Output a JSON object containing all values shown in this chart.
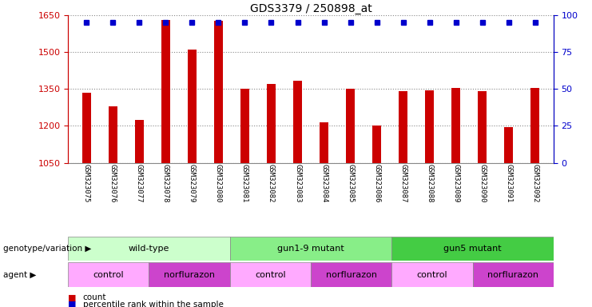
{
  "title": "GDS3379 / 250898_at",
  "samples": [
    "GSM323075",
    "GSM323076",
    "GSM323077",
    "GSM323078",
    "GSM323079",
    "GSM323080",
    "GSM323081",
    "GSM323082",
    "GSM323083",
    "GSM323084",
    "GSM323085",
    "GSM323086",
    "GSM323087",
    "GSM323088",
    "GSM323089",
    "GSM323090",
    "GSM323091",
    "GSM323092"
  ],
  "counts": [
    1335,
    1280,
    1225,
    1630,
    1510,
    1628,
    1350,
    1370,
    1385,
    1215,
    1352,
    1202,
    1340,
    1345,
    1355,
    1340,
    1195,
    1355
  ],
  "ylim_left": [
    1050,
    1650
  ],
  "ylim_right": [
    0,
    100
  ],
  "yticks_left": [
    1050,
    1200,
    1350,
    1500,
    1650
  ],
  "yticks_right": [
    0,
    25,
    50,
    75,
    100
  ],
  "bar_color": "#cc0000",
  "dot_color": "#0000cc",
  "bar_width": 0.35,
  "genotype_groups": [
    {
      "label": "wild-type",
      "start": 0,
      "end": 6,
      "color": "#ccffcc"
    },
    {
      "label": "gun1-9 mutant",
      "start": 6,
      "end": 12,
      "color": "#88ee88"
    },
    {
      "label": "gun5 mutant",
      "start": 12,
      "end": 18,
      "color": "#44cc44"
    }
  ],
  "agent_groups": [
    {
      "label": "control",
      "start": 0,
      "end": 3,
      "color": "#ffaaff"
    },
    {
      "label": "norflurazon",
      "start": 3,
      "end": 6,
      "color": "#cc44cc"
    },
    {
      "label": "control",
      "start": 6,
      "end": 9,
      "color": "#ffaaff"
    },
    {
      "label": "norflurazon",
      "start": 9,
      "end": 12,
      "color": "#cc44cc"
    },
    {
      "label": "control",
      "start": 12,
      "end": 15,
      "color": "#ffaaff"
    },
    {
      "label": "norflurazon",
      "start": 15,
      "end": 18,
      "color": "#cc44cc"
    }
  ],
  "genotype_row_label": "genotype/variation",
  "agent_row_label": "agent",
  "legend_count_label": "count",
  "legend_pct_label": "percentile rank within the sample",
  "background_color": "#ffffff",
  "xtick_bg_color": "#dddddd",
  "grid_color": "#888888",
  "tick_color_left": "#cc0000",
  "tick_color_right": "#0000cc"
}
